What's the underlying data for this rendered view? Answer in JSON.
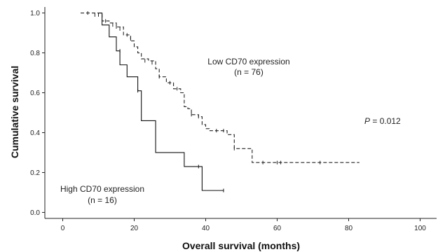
{
  "chart_data": {
    "type": "line",
    "xlabel": "Overall survival (months)",
    "ylabel": "Cumulative survival",
    "xlim": [
      -5,
      105
    ],
    "ylim": [
      -0.03,
      1.03
    ],
    "xticks": [
      0,
      20,
      40,
      60,
      80,
      100
    ],
    "yticks": [
      0.0,
      0.2,
      0.4,
      0.6,
      0.8,
      1.0
    ],
    "xtick_labels": [
      "0",
      "20",
      "40",
      "60",
      "80",
      "100"
    ],
    "ytick_labels": [
      "0.0",
      "0.2",
      "0.4",
      "0.6",
      "0.8",
      "1.0"
    ],
    "grid": false,
    "series": [
      {
        "style": "dashed",
        "color": "#222222",
        "steps": [
          [
            5,
            1.0
          ],
          [
            11,
            0.96
          ],
          [
            13,
            0.95
          ],
          [
            15,
            0.93
          ],
          [
            17,
            0.89
          ],
          [
            19,
            0.86
          ],
          [
            20,
            0.83
          ],
          [
            21,
            0.8
          ],
          [
            22,
            0.77
          ],
          [
            24,
            0.76
          ],
          [
            26,
            0.72
          ],
          [
            27,
            0.68
          ],
          [
            29,
            0.65
          ],
          [
            31,
            0.62
          ],
          [
            33,
            0.6
          ],
          [
            34,
            0.53
          ],
          [
            35,
            0.52
          ],
          [
            36,
            0.49
          ],
          [
            38,
            0.48
          ],
          [
            39,
            0.44
          ],
          [
            40,
            0.42
          ],
          [
            41,
            0.41
          ],
          [
            44,
            0.41
          ],
          [
            46,
            0.39
          ],
          [
            48,
            0.32
          ],
          [
            51,
            0.32
          ],
          [
            53,
            0.25
          ],
          [
            83,
            0.25
          ]
        ],
        "censors": [
          [
            7,
            1.0
          ],
          [
            9,
            0.99
          ],
          [
            10,
            0.99
          ],
          [
            12,
            0.96
          ],
          [
            14,
            0.94
          ],
          [
            15,
            0.93
          ],
          [
            16,
            0.92
          ],
          [
            18,
            0.89
          ],
          [
            19,
            0.87
          ],
          [
            23,
            0.76
          ],
          [
            25,
            0.75
          ],
          [
            27,
            0.68
          ],
          [
            30,
            0.65
          ],
          [
            32,
            0.62
          ],
          [
            36,
            0.49
          ],
          [
            38,
            0.48
          ],
          [
            43,
            0.41
          ],
          [
            45,
            0.41
          ],
          [
            48,
            0.32
          ],
          [
            56,
            0.25
          ],
          [
            60,
            0.25
          ],
          [
            61,
            0.25
          ],
          [
            72,
            0.25
          ]
        ]
      },
      {
        "style": "solid",
        "color": "#111111",
        "steps": [
          [
            10,
            1.0
          ],
          [
            11,
            0.94
          ],
          [
            13,
            0.88
          ],
          [
            15,
            0.81
          ],
          [
            16,
            0.74
          ],
          [
            18,
            0.68
          ],
          [
            21,
            0.61
          ],
          [
            22,
            0.46
          ],
          [
            26,
            0.3
          ],
          [
            34,
            0.23
          ],
          [
            39,
            0.11
          ],
          [
            45,
            0.11
          ]
        ],
        "censors": [
          [
            16,
            0.81
          ],
          [
            21,
            0.61
          ],
          [
            38,
            0.23
          ],
          [
            45,
            0.11
          ]
        ]
      }
    ],
    "annotations": {
      "low_line1": "Low CD70 expression",
      "low_line2": "(n = 76)",
      "high_line1": "High CD70 expression",
      "high_line2": "(n = 16)",
      "p_label": "P",
      "p_value": " = 0.012"
    }
  }
}
